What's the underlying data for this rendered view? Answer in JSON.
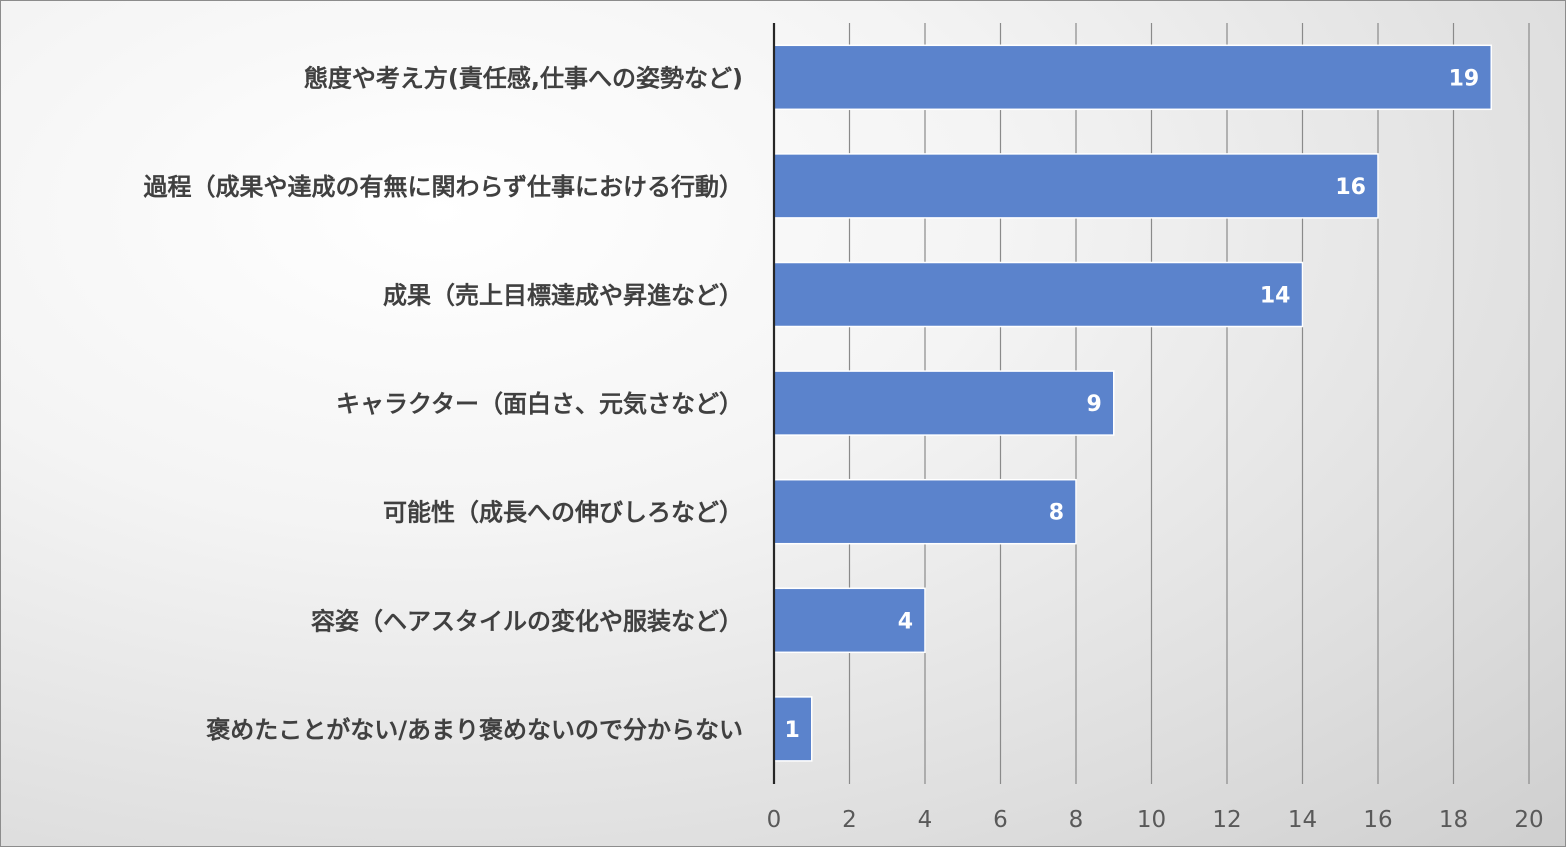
{
  "chart_data": {
    "type": "bar",
    "orientation": "horizontal",
    "categories": [
      "態度や考え方(責任感,仕事への姿勢など)",
      "過程（成果や達成の有無に関わらず仕事における行動）",
      "成果（売上目標達成や昇進など）",
      "キャラクター（面白さ、元気さなど）",
      "可能性（成長への伸びしろなど）",
      "容姿（ヘアスタイルの変化や服装など）",
      "褒めたことがない/あまり褒めないので分からない"
    ],
    "values": [
      19,
      16,
      14,
      9,
      8,
      4,
      1
    ],
    "data_labels": [
      "19",
      "16",
      "14",
      "9",
      "8",
      "4",
      "1"
    ],
    "title": "",
    "xlabel": "",
    "ylabel": "",
    "xlim": [
      0,
      20
    ],
    "xticks": [
      0,
      2,
      4,
      6,
      8,
      10,
      12,
      14,
      16,
      18,
      20
    ],
    "xtick_labels": [
      "0",
      "2",
      "4",
      "6",
      "8",
      "10",
      "12",
      "14",
      "16",
      "18",
      "20"
    ],
    "grid": true,
    "legend": "none",
    "colors": {
      "bar": "#5b83cc",
      "bar_border": "#ffffff",
      "gridline": "#8a8a8a",
      "axis": "#262626",
      "category_text": "#404040",
      "tick_text": "#595959",
      "data_label_text": "#ffffff"
    }
  }
}
